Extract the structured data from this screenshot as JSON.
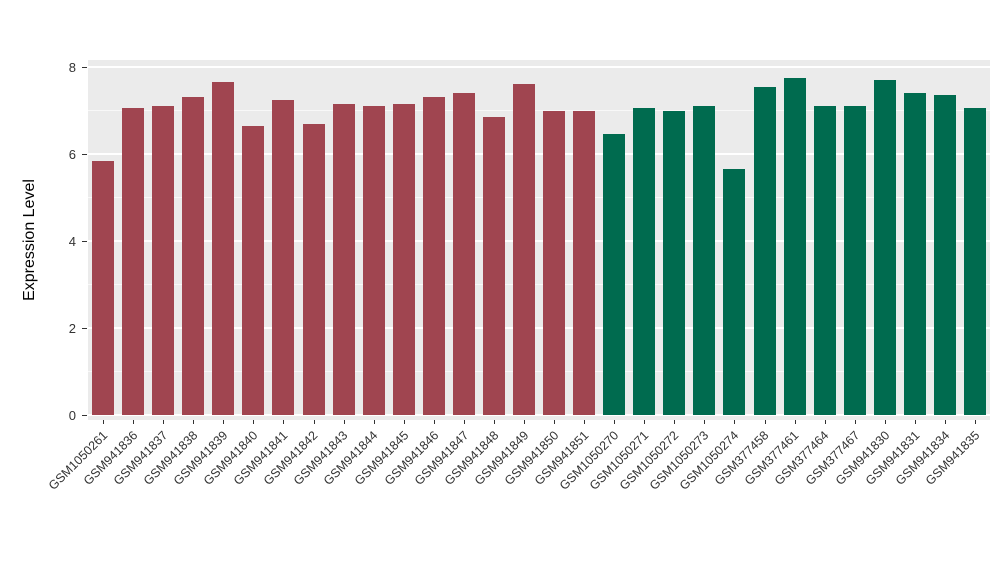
{
  "chart_data": {
    "type": "bar",
    "title": "",
    "xlabel": "",
    "ylabel": "Expression Level",
    "ylim": [
      0,
      8.16
    ],
    "yticks": [
      0,
      2,
      4,
      6,
      8
    ],
    "yticks_minor": [
      1,
      3,
      5,
      7
    ],
    "grid": true,
    "legend": false,
    "panel_background": "#EBEBEB",
    "grid_color": "#FFFFFF",
    "categories": [
      "GSM1050261",
      "GSM941836",
      "GSM941837",
      "GSM941838",
      "GSM941839",
      "GSM941840",
      "GSM941841",
      "GSM941842",
      "GSM941843",
      "GSM941844",
      "GSM941845",
      "GSM941846",
      "GSM941847",
      "GSM941848",
      "GSM941849",
      "GSM941850",
      "GSM941851",
      "GSM1050270",
      "GSM1050271",
      "GSM1050272",
      "GSM1050273",
      "GSM1050274",
      "GSM377458",
      "GSM377461",
      "GSM377464",
      "GSM377467",
      "GSM941830",
      "GSM941831",
      "GSM941834",
      "GSM941835"
    ],
    "values": [
      5.85,
      7.05,
      7.1,
      7.3,
      7.65,
      6.65,
      7.25,
      6.7,
      7.15,
      7.1,
      7.15,
      7.3,
      7.4,
      6.85,
      7.6,
      7.0,
      7.0,
      6.45,
      7.05,
      7.0,
      7.1,
      5.65,
      7.55,
      7.75,
      7.1,
      7.1,
      7.7,
      7.4,
      7.35,
      7.05
    ],
    "groups": [
      "group1",
      "group1",
      "group1",
      "group1",
      "group1",
      "group1",
      "group1",
      "group1",
      "group1",
      "group1",
      "group1",
      "group1",
      "group1",
      "group1",
      "group1",
      "group1",
      "group1",
      "group2",
      "group2",
      "group2",
      "group2",
      "group2",
      "group2",
      "group2",
      "group2",
      "group2",
      "group2",
      "group2",
      "group2",
      "group2"
    ],
    "group_colors": {
      "group1": "#A04550",
      "group2": "#006B4F"
    }
  }
}
